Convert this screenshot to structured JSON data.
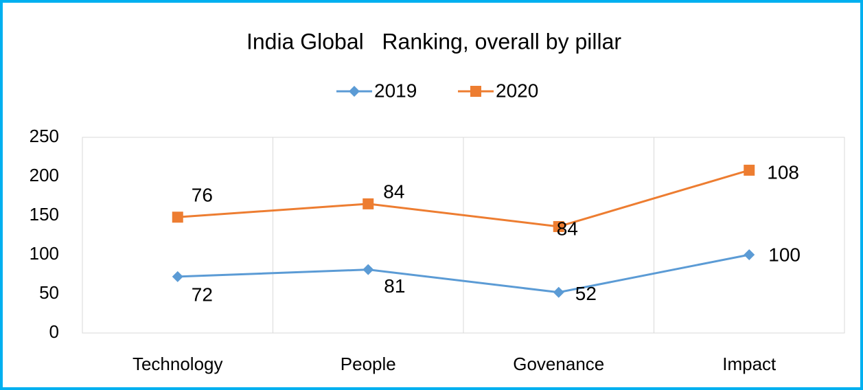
{
  "chart_data": {
    "type": "line",
    "stacked": true,
    "title": "India Global   Ranking, overall by pillar",
    "categories": [
      "Technology",
      "People",
      "Govenance",
      "Impact"
    ],
    "series": [
      {
        "name": "2019",
        "color": "#5b9bd5",
        "marker": "diamond",
        "values": [
          72,
          81,
          52,
          100
        ]
      },
      {
        "name": "2020",
        "color": "#ed7d31",
        "marker": "square",
        "values": [
          76,
          84,
          84,
          108
        ]
      }
    ],
    "ylim": [
      0,
      250
    ],
    "yticks": [
      0,
      50,
      100,
      150,
      200,
      250
    ],
    "legend": "top"
  }
}
